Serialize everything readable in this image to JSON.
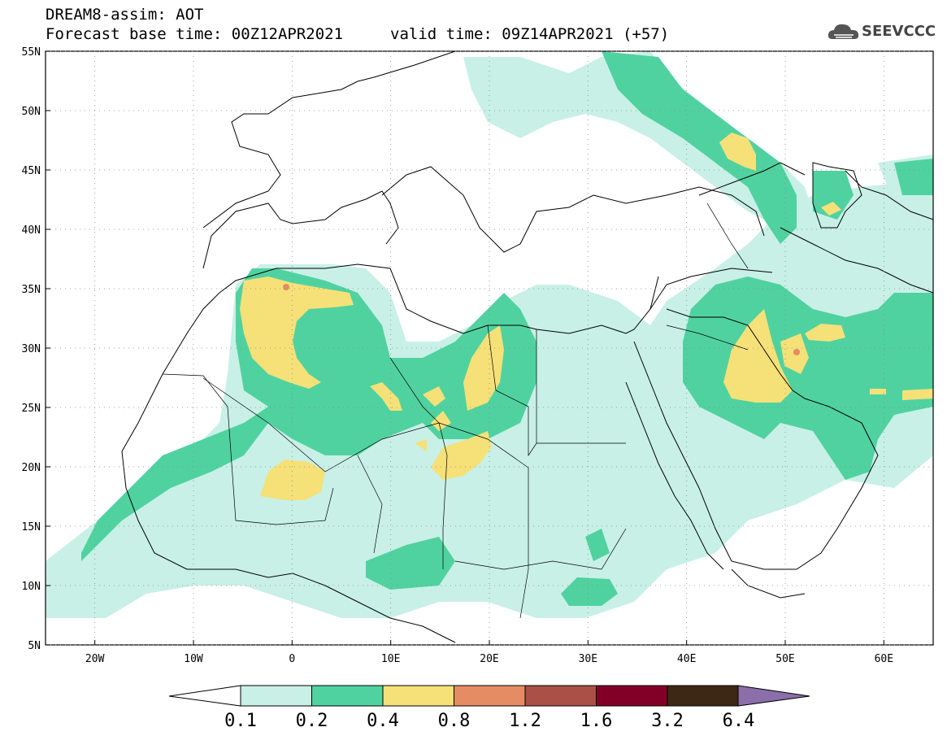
{
  "header": {
    "title": "DREAM8-assim: AOT",
    "base_time": "Forecast base time: 00Z12APR2021",
    "valid_time": "valid time: 09Z14APR2021 (+57)"
  },
  "logo": {
    "text": "SEEVCCC",
    "icon": "cloud-logo-icon"
  },
  "map": {
    "lon_range": [
      -25,
      65
    ],
    "lat_range": [
      5,
      55
    ],
    "lon_ticks": [
      "20W",
      "10W",
      "0",
      "10E",
      "20E",
      "30E",
      "40E",
      "50E",
      "60E"
    ],
    "lat_ticks": [
      "5N",
      "10N",
      "15N",
      "20N",
      "25N",
      "30N",
      "35N",
      "40N",
      "45N",
      "50N",
      "55N"
    ]
  },
  "colorbar": {
    "levels": [
      "0.1",
      "0.2",
      "0.4",
      "0.8",
      "1.2",
      "1.6",
      "3.2",
      "6.4"
    ],
    "colors": [
      "#c8f0e6",
      "#50d2a0",
      "#f5e178",
      "#e68c64",
      "#aa5046",
      "#820028",
      "#3c2814",
      "#8c6eaa"
    ]
  }
}
